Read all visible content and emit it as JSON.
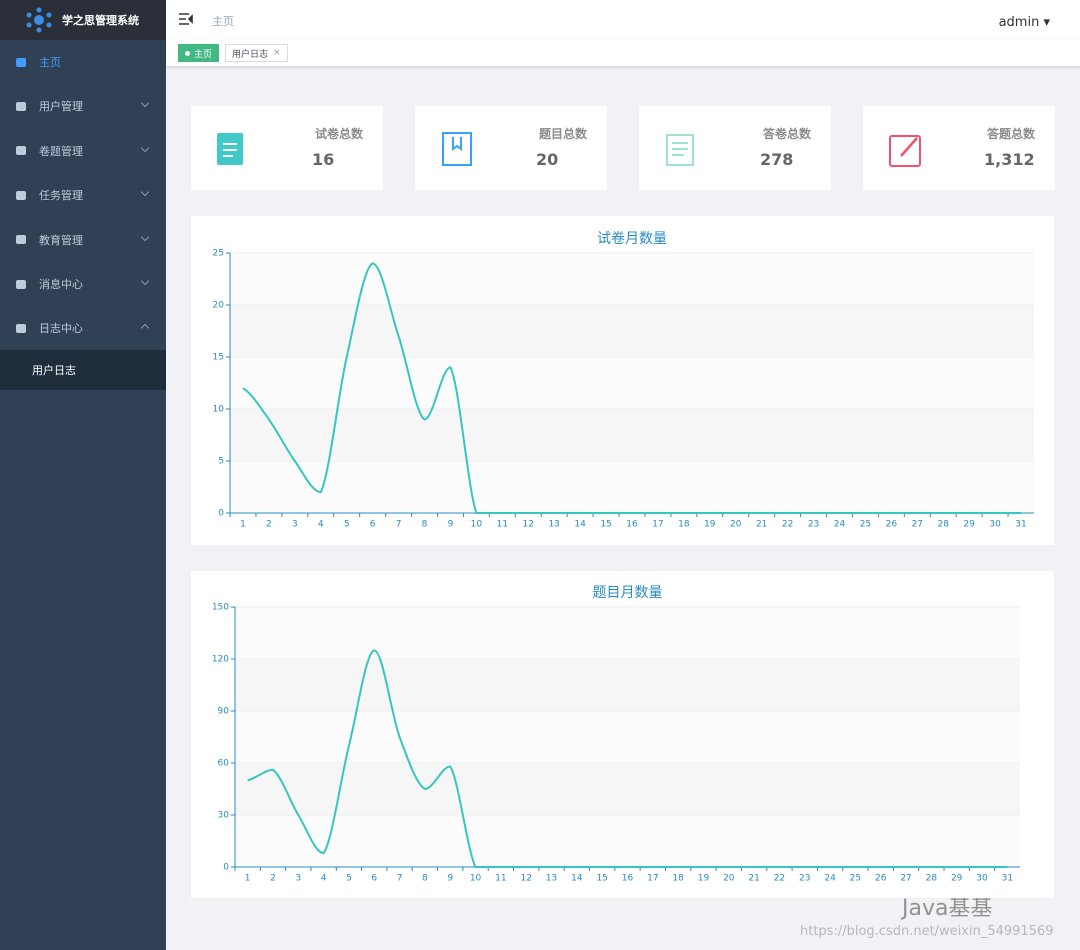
{
  "sidebar": {
    "logo": "学之思管理系统",
    "menu": [
      "主页",
      "用户管理",
      "卷题管理",
      "任务管理",
      "教育管理",
      "消息中心",
      "日志中心"
    ],
    "submenu": [
      "用户日志"
    ]
  },
  "header": {
    "breadcrumb": "主页",
    "user": "admin"
  },
  "tags": [
    "主页",
    "用户日志"
  ],
  "cards": [
    {
      "label": "试卷总数",
      "value": "16"
    },
    {
      "label": "题目总数",
      "value": "20"
    },
    {
      "label": "答卷总数",
      "value": "278"
    },
    {
      "label": "答题总数",
      "value": "1,312"
    }
  ],
  "chart_data": [
    {
      "type": "line",
      "title": "试卷月数量",
      "color": "#36c6c0",
      "grid": true,
      "categories": [
        "1",
        "2",
        "3",
        "4",
        "5",
        "6",
        "7",
        "8",
        "9",
        "10",
        "11",
        "12",
        "13",
        "14",
        "15",
        "16",
        "17",
        "18",
        "19",
        "20",
        "21",
        "22",
        "23",
        "24",
        "25",
        "26",
        "27",
        "28",
        "29",
        "30",
        "31"
      ],
      "values": [
        12,
        9,
        5,
        2,
        15,
        24,
        17,
        9,
        14,
        0,
        0,
        0,
        0,
        0,
        0,
        0,
        0,
        0,
        0,
        0,
        0,
        0,
        0,
        0,
        0,
        0,
        0,
        0,
        0,
        0,
        0
      ],
      "ylim": [
        0,
        25
      ],
      "yticks": [
        0,
        5,
        10,
        15,
        20,
        25
      ]
    },
    {
      "type": "line",
      "title": "题目月数量",
      "color": "#36c6c0",
      "grid": true,
      "categories": [
        "1",
        "2",
        "3",
        "4",
        "5",
        "6",
        "7",
        "8",
        "9",
        "10",
        "11",
        "12",
        "13",
        "14",
        "15",
        "16",
        "17",
        "18",
        "19",
        "20",
        "21",
        "22",
        "23",
        "24",
        "25",
        "26",
        "27",
        "28",
        "29",
        "30",
        "31"
      ],
      "values": [
        50,
        56,
        30,
        8,
        70,
        125,
        75,
        45,
        58,
        0,
        0,
        0,
        0,
        0,
        0,
        0,
        0,
        0,
        0,
        0,
        0,
        0,
        0,
        0,
        0,
        0,
        0,
        0,
        0,
        0,
        0
      ],
      "ylim": [
        0,
        150
      ],
      "yticks": [
        0,
        30,
        60,
        90,
        120,
        150
      ]
    }
  ],
  "watermark": {
    "text": "Java基基",
    "url": "https://blog.csdn.net/weixin_54991569"
  }
}
